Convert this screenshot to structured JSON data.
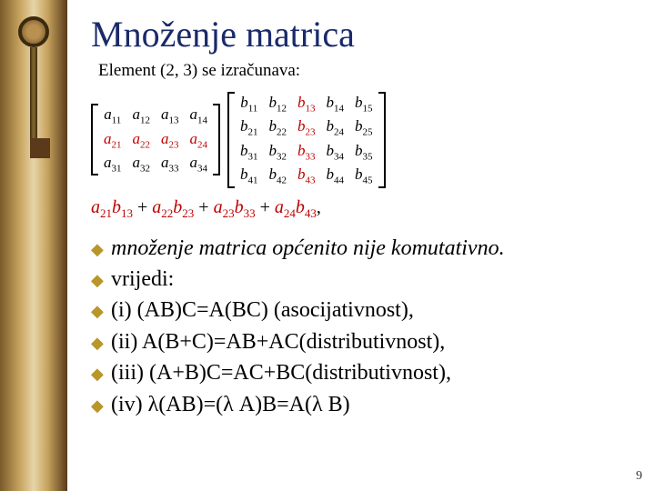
{
  "title": "Množenje matrica",
  "subtitle": "Element (2, 3) se izračunava:",
  "matrixA": {
    "rows": 3,
    "cols": 4,
    "cells": [
      [
        {
          "t": "a",
          "s": "11"
        },
        {
          "t": "a",
          "s": "12"
        },
        {
          "t": "a",
          "s": "13"
        },
        {
          "t": "a",
          "s": "14"
        }
      ],
      [
        {
          "t": "a",
          "s": "21",
          "hl": true
        },
        {
          "t": "a",
          "s": "22",
          "hl": true
        },
        {
          "t": "a",
          "s": "23",
          "hl": true
        },
        {
          "t": "a",
          "s": "24",
          "hl": true
        }
      ],
      [
        {
          "t": "a",
          "s": "31"
        },
        {
          "t": "a",
          "s": "32"
        },
        {
          "t": "a",
          "s": "33"
        },
        {
          "t": "a",
          "s": "34"
        }
      ]
    ]
  },
  "matrixB": {
    "rows": 4,
    "cols": 5,
    "cells": [
      [
        {
          "t": "b",
          "s": "11"
        },
        {
          "t": "b",
          "s": "12"
        },
        {
          "t": "b",
          "s": "13",
          "hl": true
        },
        {
          "t": "b",
          "s": "14"
        },
        {
          "t": "b",
          "s": "15"
        }
      ],
      [
        {
          "t": "b",
          "s": "21"
        },
        {
          "t": "b",
          "s": "22"
        },
        {
          "t": "b",
          "s": "23",
          "hl": true
        },
        {
          "t": "b",
          "s": "24"
        },
        {
          "t": "b",
          "s": "25"
        }
      ],
      [
        {
          "t": "b",
          "s": "31"
        },
        {
          "t": "b",
          "s": "32"
        },
        {
          "t": "b",
          "s": "33",
          "hl": true
        },
        {
          "t": "b",
          "s": "34"
        },
        {
          "t": "b",
          "s": "35"
        }
      ],
      [
        {
          "t": "b",
          "s": "41"
        },
        {
          "t": "b",
          "s": "42"
        },
        {
          "t": "b",
          "s": "43",
          "hl": true
        },
        {
          "t": "b",
          "s": "44"
        },
        {
          "t": "b",
          "s": "45"
        }
      ]
    ]
  },
  "formula_terms": [
    {
      "a": "21",
      "b": "13"
    },
    {
      "a": "22",
      "b": "23"
    },
    {
      "a": "23",
      "b": "33"
    },
    {
      "a": "24",
      "b": "43"
    }
  ],
  "formula_trail": ",",
  "bullets": [
    {
      "text": "množenje matrica općenito nije komutativno.",
      "italic": true
    },
    {
      "text": "vrijedi:"
    },
    {
      "text": "(i) (AB)C=A(BC) (asocijativnost),"
    },
    {
      "text": "(ii) A(B+C)=AB+AC(distributivnost),"
    },
    {
      "text": "(iii) (A+B)C=AC+BC(distributivnost),"
    },
    {
      "text": "(iv) λ(AB)=(λ A)B=A(λ B)"
    }
  ],
  "bullet_glyph": "◆",
  "page_number": "9",
  "colors": {
    "title": "#1a2a6a",
    "highlight": "#c00000",
    "bullet": "#b8962a",
    "background": "#ffffff"
  },
  "fontsizes": {
    "title": 40,
    "subtitle": 19,
    "matrix": 17,
    "formula": 20,
    "bullets": 24,
    "pagenum": 14
  }
}
